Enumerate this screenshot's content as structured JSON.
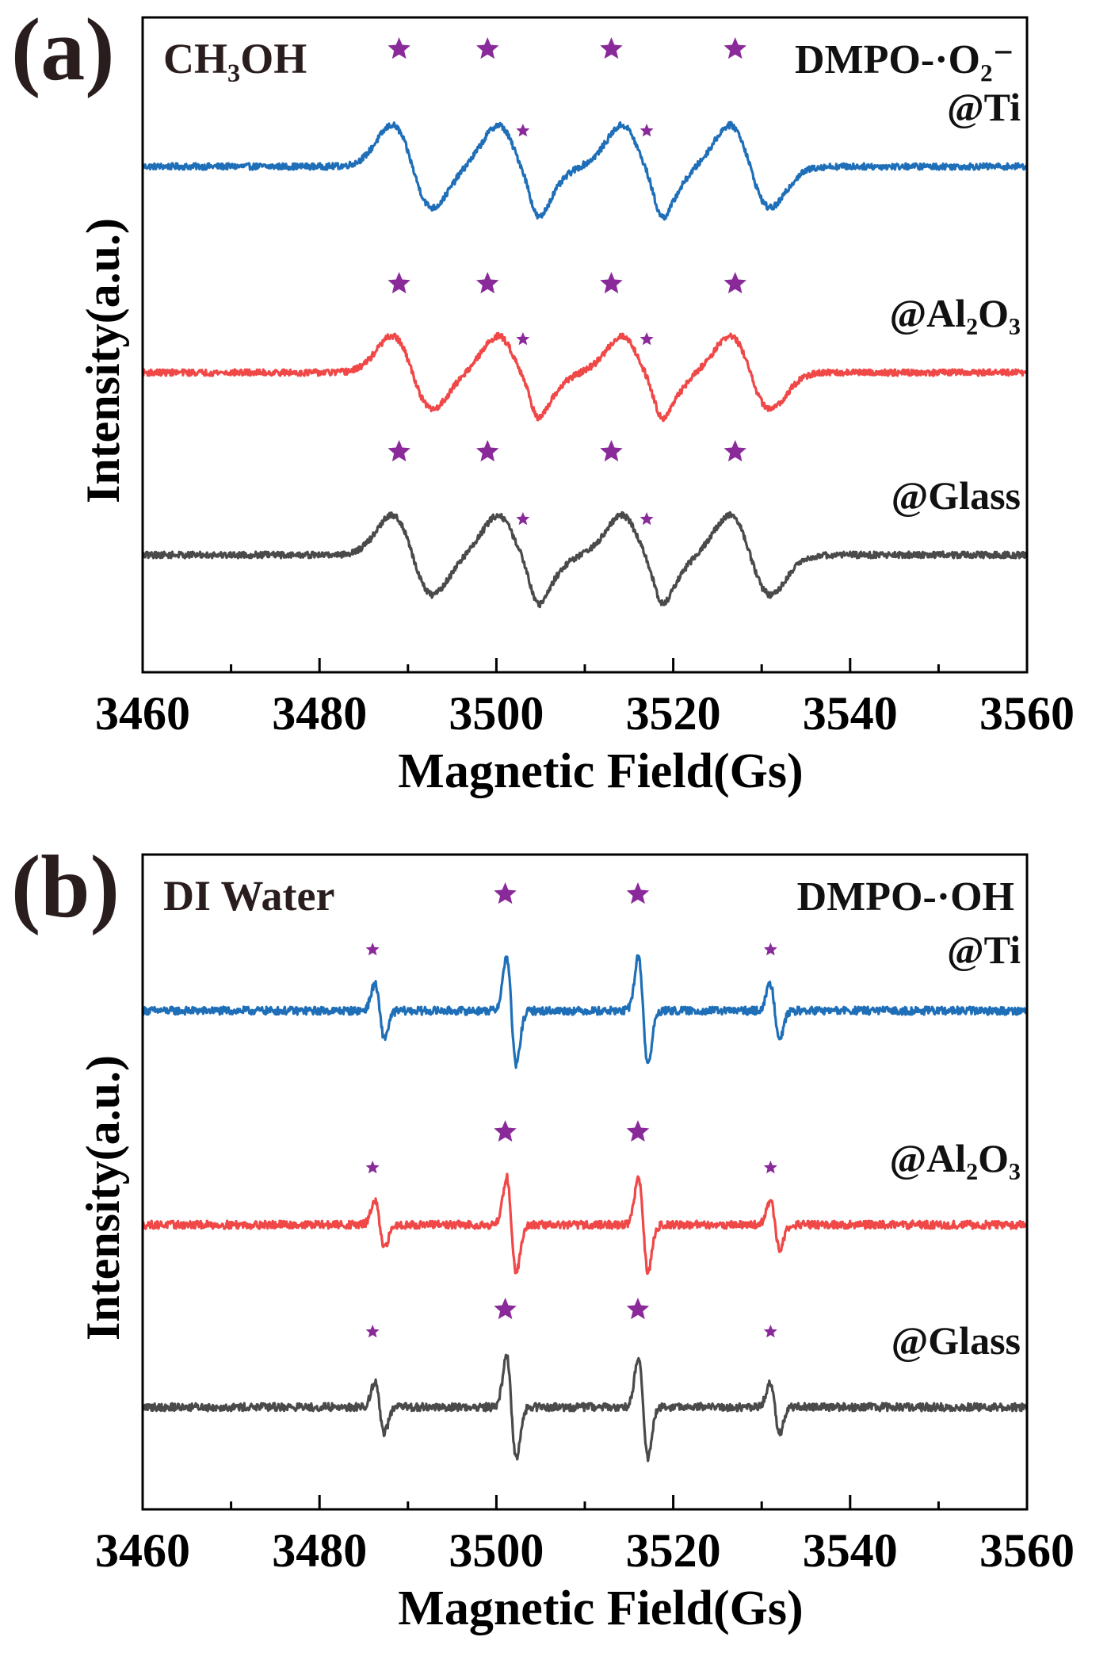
{
  "figure": {
    "xlabel": "Magnetic Field(Gs)",
    "ylabel": "Intensity(a.u.)",
    "colors": {
      "Ti": "#1f6fb8",
      "Al2O3": "#f04747",
      "Glass": "#4a4a4a",
      "star": "#8a2a9a",
      "axis": "#000000"
    }
  },
  "chart_data": [
    {
      "type": "line",
      "panel_label": "(a)",
      "solvent_label": "CH₃OH",
      "spin_adduct_label": "DMPO-·O₂⁻",
      "xlabel": "Magnetic Field(Gs)",
      "ylabel": "Intensity(a.u.)",
      "xlim": [
        3460,
        3560
      ],
      "xticks": [
        3460,
        3480,
        3500,
        3520,
        3540,
        3560
      ],
      "y_units": "arbitrary (offset stacked)",
      "series": [
        {
          "name": "@Ti",
          "color": "#1f6fb8",
          "baseline": 0,
          "lines": [
            {
              "center": 3490.5,
              "amp": 52,
              "width": 2.3
            },
            {
              "center": 3502.5,
              "amp": 52,
              "width": 2.3
            },
            {
              "center": 3516.5,
              "amp": 52,
              "width": 2.3
            },
            {
              "center": 3528.7,
              "amp": 52,
              "width": 2.3
            },
            {
              "center": 3504.0,
              "amp": 12,
              "width": 0.9
            },
            {
              "center": 3518.0,
              "amp": 12,
              "width": 0.9
            }
          ],
          "noise": 4
        },
        {
          "name": "@Al₂O₃",
          "color": "#f04747",
          "baseline": 0,
          "lines": [
            {
              "center": 3490.5,
              "amp": 46,
              "width": 2.3
            },
            {
              "center": 3502.5,
              "amp": 46,
              "width": 2.3
            },
            {
              "center": 3516.5,
              "amp": 46,
              "width": 2.3
            },
            {
              "center": 3528.7,
              "amp": 46,
              "width": 2.3
            },
            {
              "center": 3504.0,
              "amp": 11,
              "width": 0.9
            },
            {
              "center": 3518.0,
              "amp": 11,
              "width": 0.9
            }
          ],
          "noise": 4
        },
        {
          "name": "@Glass",
          "color": "#4a4a4a",
          "baseline": 0,
          "lines": [
            {
              "center": 3490.5,
              "amp": 50,
              "width": 2.3
            },
            {
              "center": 3502.5,
              "amp": 50,
              "width": 2.3
            },
            {
              "center": 3516.5,
              "amp": 50,
              "width": 2.3
            },
            {
              "center": 3528.7,
              "amp": 50,
              "width": 2.3
            },
            {
              "center": 3504.0,
              "amp": 12,
              "width": 0.9
            },
            {
              "center": 3518.0,
              "amp": 12,
              "width": 0.9
            }
          ],
          "noise": 4
        }
      ],
      "star_markers": {
        "major_x": [
          3489,
          3499,
          3513,
          3527
        ],
        "minor_x": [
          3503,
          3517
        ]
      }
    },
    {
      "type": "line",
      "panel_label": "(b)",
      "solvent_label": "DI Water",
      "spin_adduct_label": "DMPO-·OH",
      "xlabel": "Magnetic Field(Gs)",
      "ylabel": "Intensity(a.u.)",
      "xlim": [
        3460,
        3560
      ],
      "xticks": [
        3460,
        3480,
        3500,
        3520,
        3540,
        3560
      ],
      "y_units": "arbitrary (offset stacked)",
      "series": [
        {
          "name": "@Ti",
          "color": "#1f6fb8",
          "baseline": 0,
          "lines": [
            {
              "center": 3486.8,
              "amp": 34,
              "width": 0.55
            },
            {
              "center": 3501.7,
              "amp": 68,
              "width": 0.55
            },
            {
              "center": 3516.6,
              "amp": 68,
              "width": 0.55
            },
            {
              "center": 3531.5,
              "amp": 34,
              "width": 0.55
            }
          ],
          "noise": 5
        },
        {
          "name": "@Al₂O₃",
          "color": "#f04747",
          "baseline": 0,
          "lines": [
            {
              "center": 3486.8,
              "amp": 30,
              "width": 0.55
            },
            {
              "center": 3501.7,
              "amp": 60,
              "width": 0.55
            },
            {
              "center": 3516.6,
              "amp": 60,
              "width": 0.55
            },
            {
              "center": 3531.5,
              "amp": 30,
              "width": 0.55
            }
          ],
          "noise": 5
        },
        {
          "name": "@Glass",
          "color": "#4a4a4a",
          "baseline": 0,
          "lines": [
            {
              "center": 3486.8,
              "amp": 32,
              "width": 0.55
            },
            {
              "center": 3501.7,
              "amp": 64,
              "width": 0.55
            },
            {
              "center": 3516.6,
              "amp": 64,
              "width": 0.55
            },
            {
              "center": 3531.5,
              "amp": 32,
              "width": 0.55
            }
          ],
          "noise": 5
        }
      ],
      "star_markers": {
        "major_x": [
          3501,
          3516
        ],
        "minor_x": [
          3486,
          3531
        ]
      }
    }
  ]
}
